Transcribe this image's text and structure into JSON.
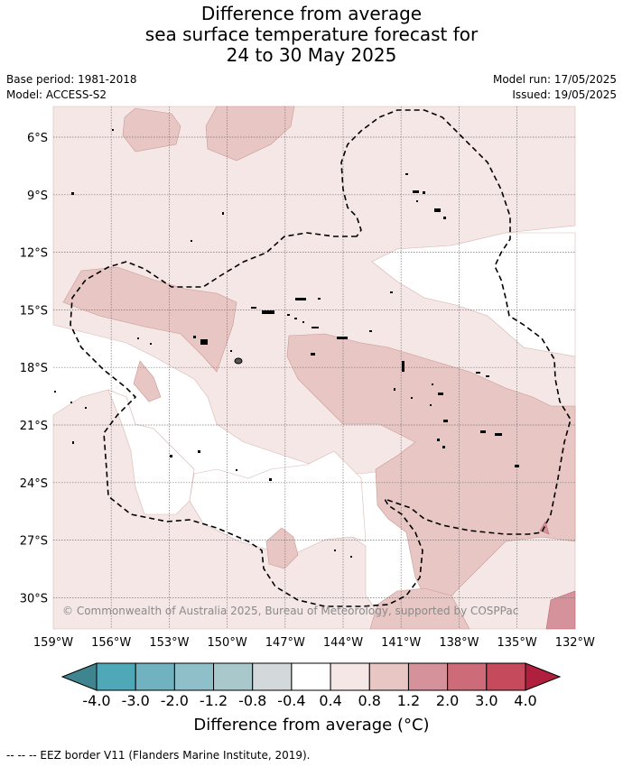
{
  "header": {
    "title_lines": [
      "Difference from average",
      "sea surface temperature forecast for",
      "24 to 30 May 2025"
    ],
    "base_period": "Base period: 1981-2018",
    "model": "Model: ACCESS-S2",
    "model_run": "Model run: 17/05/2025",
    "issued": "Issued: 19/05/2025"
  },
  "map": {
    "lat_labels": [
      "6°S",
      "9°S",
      "12°S",
      "15°S",
      "18°S",
      "21°S",
      "24°S",
      "27°S",
      "30°S"
    ],
    "lon_labels": [
      "159°W",
      "156°W",
      "153°W",
      "150°W",
      "147°W",
      "144°W",
      "141°W",
      "138°W",
      "135°W",
      "132°W"
    ],
    "copyright": "© Commonwealth of Australia 2025, Bureau of Meteorology, supported by COSPPac"
  },
  "colorbar": {
    "tick_labels": [
      "-4.0",
      "-3.0",
      "-2.0",
      "-1.2",
      "-0.8",
      "-0.4",
      "0.4",
      "0.8",
      "1.2",
      "2.0",
      "3.0",
      "4.0"
    ],
    "colors": [
      "#3f8590",
      "#4ea8b8",
      "#70b2bf",
      "#8fbfc8",
      "#a9c8cc",
      "#d3d9da",
      "#ffffff",
      "#f4e7e6",
      "#e8c6c3",
      "#d6929a",
      "#cd6b78",
      "#c44a5c",
      "#b01f3e"
    ],
    "label": "Difference from average (°C)"
  },
  "footnote": "--  --  -- EEZ border V11 (Flanders Marine Institute, 2019)."
}
